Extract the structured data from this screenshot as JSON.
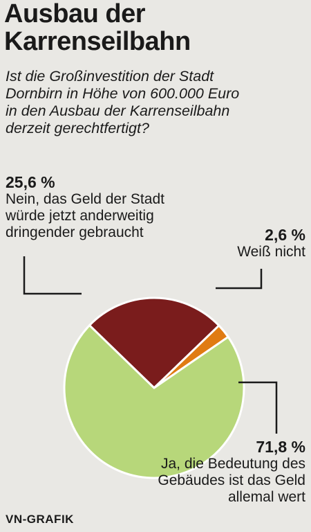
{
  "title_line1": "Ausbau der",
  "title_line2": "Karrenseilbahn",
  "question": {
    "line1": "Ist die Großinvestition der Stadt",
    "line2": "Dornbirn in Höhe von 600.000 Euro",
    "line3": "in den Ausbau der Karrenseilbahn",
    "line4": "derzeit gerechtfertigt?"
  },
  "labels": {
    "nein": {
      "pct": "25,6 %",
      "line1": "Nein, das Geld der Stadt",
      "line2": "würde jetzt anderweitig",
      "line3": "dringender gebraucht"
    },
    "weiss": {
      "pct": "2,6 %",
      "line1": "Weiß nicht"
    },
    "ja": {
      "pct": "71,8 %",
      "line1": "Ja, die Bedeutung des",
      "line2": "Gebäudes ist das Geld",
      "line3": "allemal wert"
    }
  },
  "source": "VN-GRAFIK",
  "chart_data": {
    "type": "pie",
    "slices": [
      {
        "label": "Nein, das Geld der Stadt würde jetzt anderweitig dringender gebraucht",
        "value": 25.6,
        "color": "#7a1c1c"
      },
      {
        "label": "Weiß nicht",
        "value": 2.6,
        "color": "#e07b12"
      },
      {
        "label": "Ja, die Bedeutung des Gebäudes ist das Geld allemal wert",
        "value": 71.8,
        "color": "#b7d77a"
      }
    ]
  }
}
